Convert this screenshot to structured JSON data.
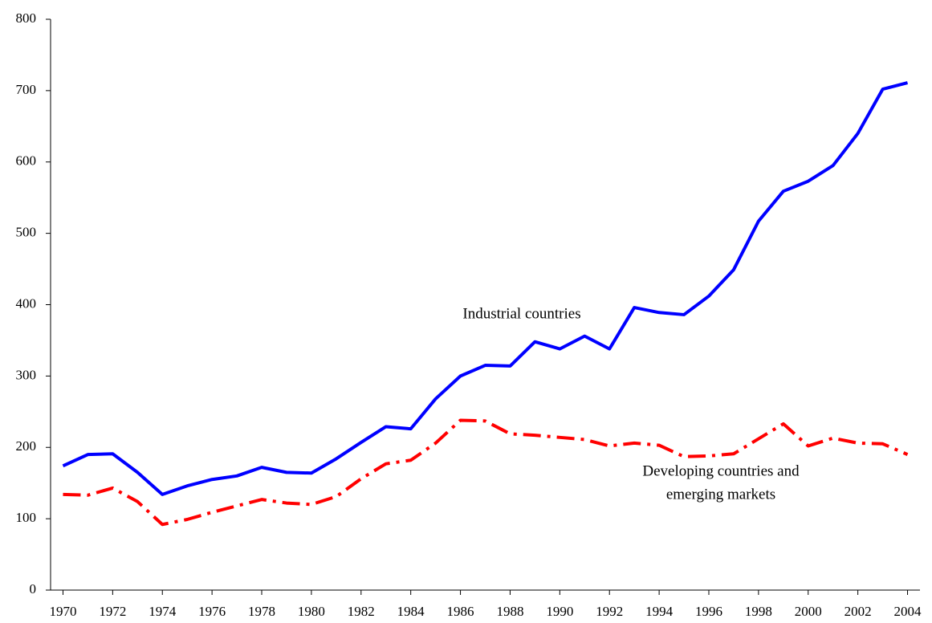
{
  "chart_data": {
    "type": "line",
    "x": [
      1970,
      1971,
      1972,
      1973,
      1974,
      1975,
      1976,
      1977,
      1978,
      1979,
      1980,
      1981,
      1982,
      1983,
      1984,
      1985,
      1986,
      1987,
      1988,
      1989,
      1990,
      1991,
      1992,
      1993,
      1994,
      1995,
      1996,
      1997,
      1998,
      1999,
      2000,
      2001,
      2002,
      2003,
      2004
    ],
    "series": [
      {
        "name": "Industrial countries",
        "color": "#0000ff",
        "dash": "solid",
        "values": [
          174,
          190,
          191,
          165,
          134,
          146,
          155,
          160,
          172,
          165,
          164,
          184,
          207,
          229,
          226,
          268,
          300,
          315,
          314,
          348,
          338,
          356,
          338,
          396,
          389,
          386,
          412,
          449,
          517,
          559,
          573,
          595,
          640,
          702,
          711
        ]
      },
      {
        "name": "Developing countries and emerging markets",
        "color": "#ff0000",
        "dash": "dashdot",
        "values": [
          134,
          133,
          143,
          124,
          92,
          99,
          109,
          118,
          127,
          122,
          120,
          131,
          156,
          177,
          182,
          206,
          238,
          237,
          219,
          217,
          214,
          211,
          202,
          206,
          203,
          187,
          188,
          191,
          212,
          233,
          202,
          213,
          206,
          205,
          190
        ]
      }
    ],
    "annotations": [
      [
        "Industrial countries"
      ],
      [
        "Developing countries and",
        "emerging markets"
      ]
    ],
    "xlim": [
      1969.5,
      2004.5
    ],
    "xticks": [
      1970,
      1972,
      1974,
      1976,
      1978,
      1980,
      1982,
      1984,
      1986,
      1988,
      1990,
      1992,
      1994,
      1996,
      1998,
      2000,
      2002,
      2004
    ],
    "ylim": [
      0,
      800
    ],
    "yticks": [
      0,
      100,
      200,
      300,
      400,
      500,
      600,
      700,
      800
    ],
    "grid": false
  }
}
